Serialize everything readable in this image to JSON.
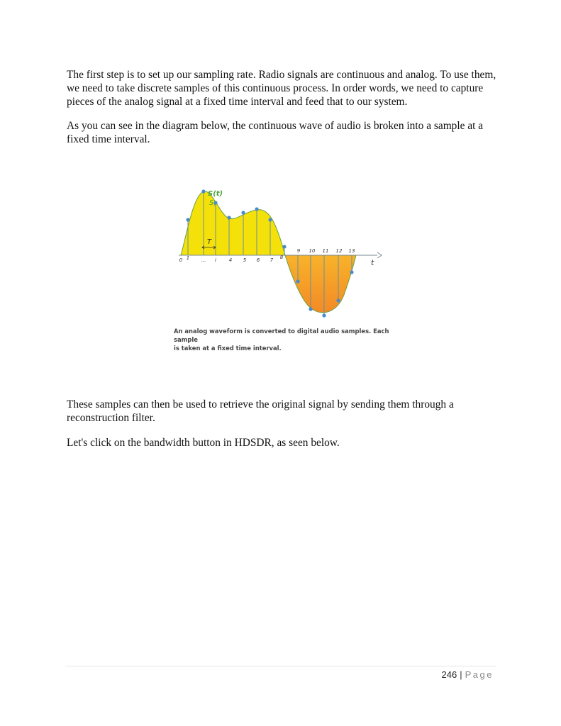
{
  "body": {
    "paragraph_1": "The first step is to set up our sampling rate. Radio signals are continuous and analog. To use them, we need to take discrete samples of this continuous process. In order words, we need to capture pieces of the analog signal at a fixed time interval and feed that to our system.",
    "paragraph_2": "As you can see in the diagram below, the continuous wave of audio is broken into a sample at a fixed time interval.",
    "paragraph_3": "These samples can then be used to retrieve the original signal by sending them through a reconstruction filter.",
    "paragraph_4": "Let's click on the bandwidth button in HDSDR, as seen below."
  },
  "figure": {
    "signal_label": "S(t)",
    "sample_label": "S",
    "sample_subscript": "i",
    "interval_label": "T",
    "axis_label": "t",
    "lower_ticks": [
      "0",
      "1",
      "...",
      "i",
      "4",
      "5",
      "6",
      "7",
      "8"
    ],
    "upper_ticks": [
      "9",
      "10",
      "11",
      "12",
      "13"
    ],
    "caption_line_1": "An analog waveform is converted to digital audio samples. Each sample",
    "caption_line_2": "is taken at a fixed time interval.",
    "colors": {
      "positive_fill": "#f5e10a",
      "negative_fill_top": "#f8b32a",
      "negative_fill_bottom": "#f38a26",
      "waveform_line": "#6aa23d",
      "sample_dot": "#4a8bcc",
      "label_green": "#4ea33c"
    }
  },
  "footer": {
    "page_number": "246",
    "separator": "|",
    "page_word": "Page"
  }
}
